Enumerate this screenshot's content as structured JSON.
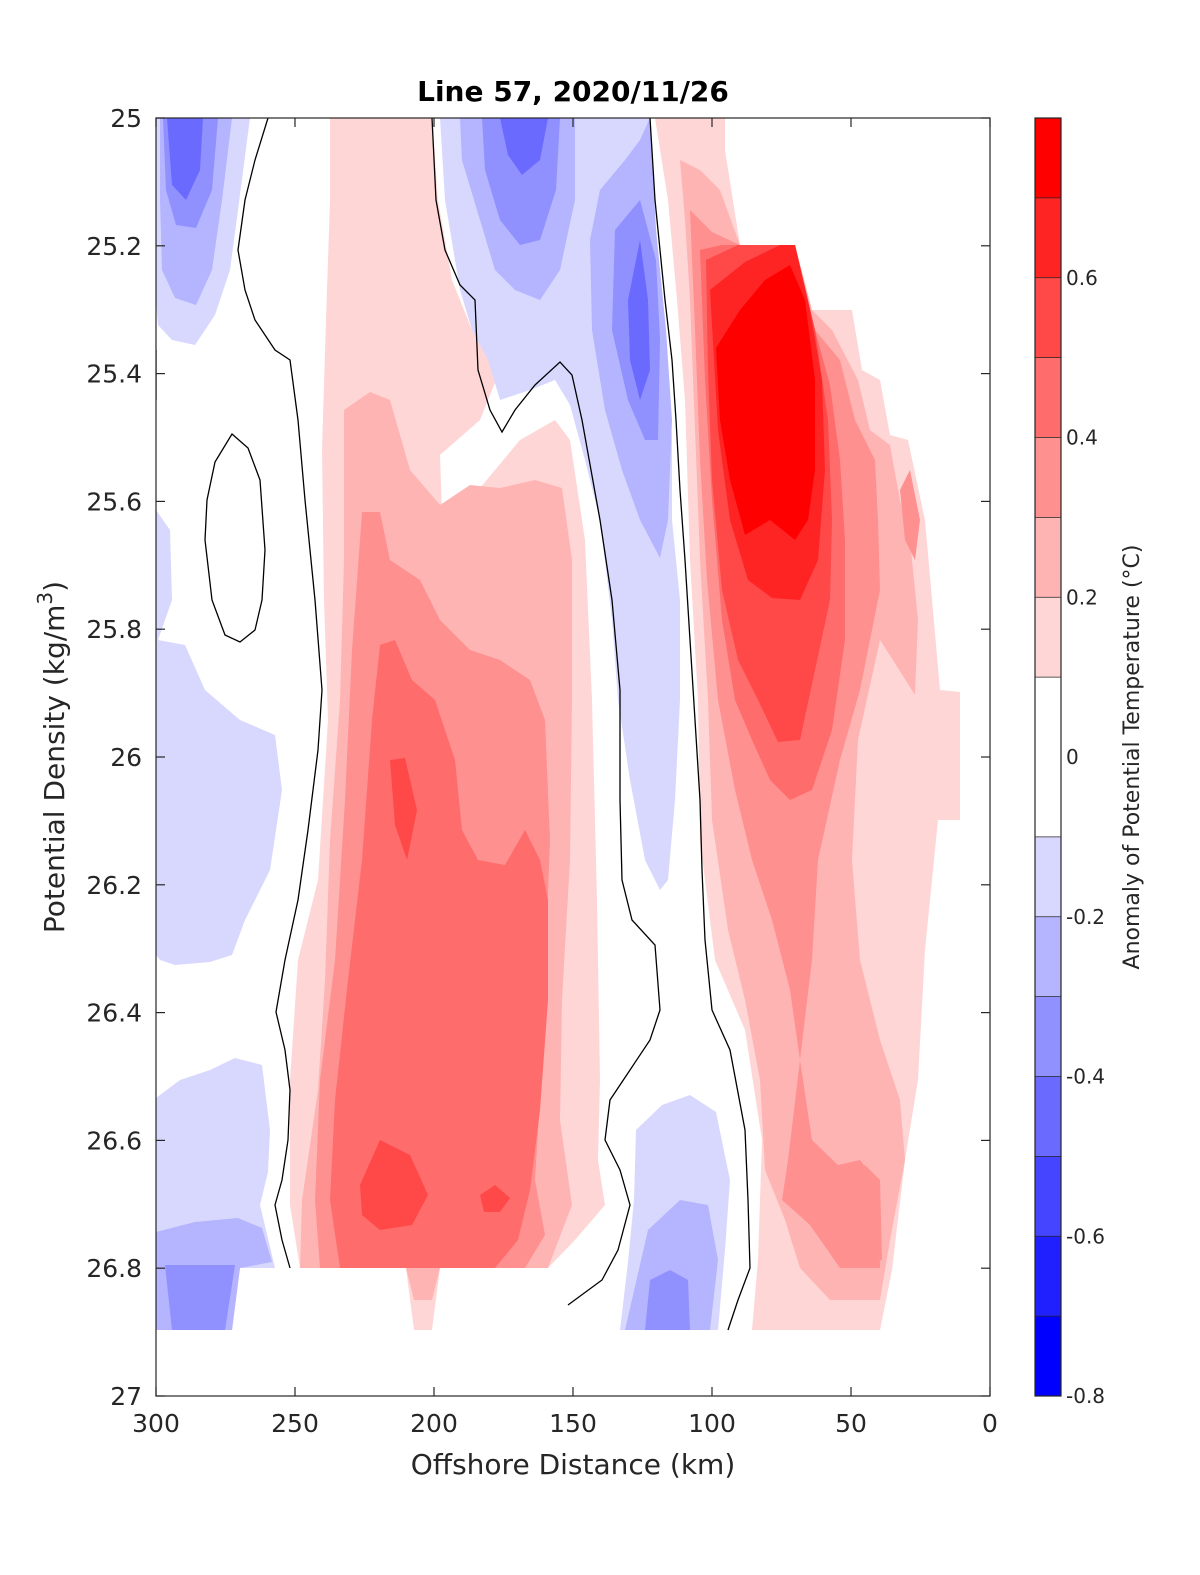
{
  "chart_data": {
    "type": "heatmap",
    "subtype": "filled-contour",
    "title": "Line 57, 2020/11/26",
    "xlabel": "Offshore Distance (km)",
    "ylabel_main": "Potential Density (kg/m",
    "ylabel_sup": "3",
    "ylabel_end": ")",
    "xlim": [
      300,
      0
    ],
    "x_reversed": true,
    "ylim": [
      25,
      27
    ],
    "y_reversed": true,
    "x_ticks": [
      300,
      250,
      200,
      150,
      100,
      50,
      0
    ],
    "x_tick_labels": [
      "300",
      "250",
      "200",
      "150",
      "100",
      "50",
      "0"
    ],
    "y_ticks": [
      25,
      25.2,
      25.4,
      25.6,
      25.8,
      26,
      26.2,
      26.4,
      26.6,
      26.8,
      27
    ],
    "y_tick_labels": [
      "25",
      "25.2",
      "25.4",
      "25.6",
      "25.8",
      "26",
      "26.2",
      "26.4",
      "26.6",
      "26.8",
      "27"
    ],
    "colorbar": {
      "label": "Anomaly of Potential Temperature (°C)",
      "range": [
        -0.8,
        0.8
      ],
      "levels": [
        -0.8,
        -0.7,
        -0.6,
        -0.5,
        -0.4,
        -0.3,
        -0.2,
        -0.1,
        0.1,
        0.2,
        0.3,
        0.4,
        0.5,
        0.6,
        0.7,
        0.8
      ],
      "colors": [
        "#0000ff",
        "#2020ff",
        "#4545ff",
        "#6a6aff",
        "#9090ff",
        "#b4b4ff",
        "#d8d8ff",
        "#ffffff",
        "#ffd6d6",
        "#ffb4b4",
        "#ff9090",
        "#ff6c6c",
        "#ff4848",
        "#ff2424",
        "#ff0000"
      ],
      "tick_values": [
        -0.8,
        -0.6,
        -0.4,
        -0.2,
        0,
        0.2,
        0.4,
        0.6
      ],
      "tick_labels": [
        "-0.8",
        "-0.6",
        "-0.4",
        "-0.2",
        "0",
        "0.2",
        "0.4",
        "0.6"
      ]
    },
    "anomaly_features": [
      {
        "kind": "cold",
        "center_km": 285,
        "center_density": 25.15,
        "peak_anomaly": -0.35
      },
      {
        "kind": "cold",
        "center_km": 168,
        "center_density": 25.05,
        "peak_anomaly": -0.35
      },
      {
        "kind": "cold",
        "center_km": 128,
        "center_density": 25.4,
        "peak_anomaly": -0.4
      },
      {
        "kind": "cold",
        "center_km": 115,
        "center_density": 26.83,
        "peak_anomaly": -0.35
      },
      {
        "kind": "cold",
        "center_km": 280,
        "center_density": 26.85,
        "peak_anomaly": -0.35
      },
      {
        "kind": "warm",
        "center_km": 210,
        "center_density": 26.1,
        "peak_anomaly": 0.55
      },
      {
        "kind": "warm",
        "center_km": 215,
        "center_density": 26.7,
        "peak_anomaly": 0.55
      },
      {
        "kind": "warm",
        "center_km": 75,
        "center_density": 25.5,
        "peak_anomaly": 0.75
      }
    ]
  }
}
